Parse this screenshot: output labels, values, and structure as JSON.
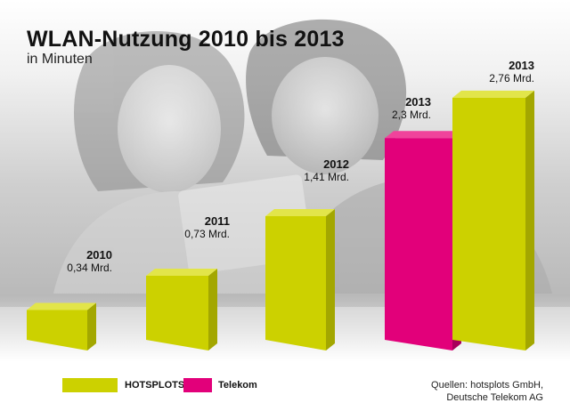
{
  "title": "WLAN-Nutzung 2010 bis 2013",
  "subtitle": "in Minuten",
  "colors": {
    "hotsplots": "#ccd100",
    "hotsplots_side": "#a3a700",
    "hotsplots_top": "#e2e54a",
    "telekom": "#e2007a",
    "telekom_side": "#a8005b",
    "telekom_top": "#f0439b"
  },
  "chart_data": {
    "type": "bar",
    "title": "WLAN-Nutzung 2010 bis 2013",
    "subtitle": "in Minuten",
    "unit": "Mrd.",
    "categories": [
      "2010",
      "2011",
      "2012",
      "2013",
      "2013"
    ],
    "series": [
      {
        "name": "HOTSPLOTS",
        "points": [
          {
            "year": "2010",
            "value": 0.34,
            "label": "0,34 Mrd."
          },
          {
            "year": "2011",
            "value": 0.73,
            "label": "0,73 Mrd."
          },
          {
            "year": "2012",
            "value": 1.41,
            "label": "1,41 Mrd."
          },
          {
            "year": "2013",
            "value": 2.76,
            "label": "2,76 Mrd."
          }
        ]
      },
      {
        "name": "Telekom",
        "points": [
          {
            "year": "2013",
            "value": 2.3,
            "label": "2,3 Mrd."
          }
        ]
      }
    ],
    "grid": false,
    "legend": "bottom-left"
  },
  "legend": {
    "hotsplots": "HOTSPLOTS",
    "telekom": "Telekom"
  },
  "source": {
    "line1": "Quellen: hotsplots GmbH,",
    "line2": "Deutsche Telekom AG"
  }
}
